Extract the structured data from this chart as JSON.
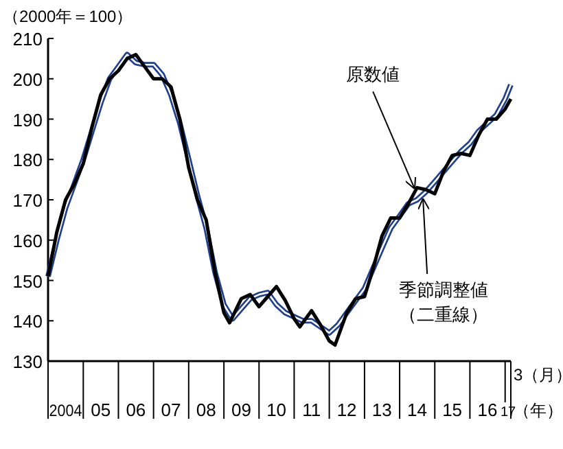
{
  "chart_data": {
    "type": "line",
    "ylabel": "（2000年＝100）",
    "xlim": [
      "2004-01",
      "2017-03"
    ],
    "ylim": [
      130,
      210
    ],
    "yticks": [
      130,
      140,
      150,
      160,
      170,
      180,
      190,
      200,
      210
    ],
    "xticks": [
      {
        "value": "2004-01",
        "label": null
      },
      {
        "value": "2004-07",
        "label": "2004"
      },
      {
        "value": "2005-01",
        "label": null
      },
      {
        "value": "2005-07",
        "label": "05"
      },
      {
        "value": "2006-01",
        "label": null
      },
      {
        "value": "2006-07",
        "label": "06"
      },
      {
        "value": "2007-01",
        "label": null
      },
      {
        "value": "2007-07",
        "label": "07"
      },
      {
        "value": "2008-01",
        "label": null
      },
      {
        "value": "2008-07",
        "label": "08"
      },
      {
        "value": "2009-01",
        "label": null
      },
      {
        "value": "2009-07",
        "label": "09"
      },
      {
        "value": "2010-01",
        "label": null
      },
      {
        "value": "2010-07",
        "label": "10"
      },
      {
        "value": "2011-01",
        "label": null
      },
      {
        "value": "2011-07",
        "label": "11"
      },
      {
        "value": "2012-01",
        "label": null
      },
      {
        "value": "2012-07",
        "label": "12"
      },
      {
        "value": "2013-01",
        "label": null
      },
      {
        "value": "2013-07",
        "label": "13"
      },
      {
        "value": "2014-01",
        "label": null
      },
      {
        "value": "2014-07",
        "label": "14"
      },
      {
        "value": "2015-01",
        "label": null
      },
      {
        "value": "2015-07",
        "label": "15"
      },
      {
        "value": "2016-01",
        "label": null
      },
      {
        "value": "2016-07",
        "label": "16"
      },
      {
        "value": "2017-01",
        "label": null
      },
      {
        "value": "2017-02",
        "label": "17"
      },
      {
        "value": "2017-03",
        "label": null
      }
    ],
    "grid": false,
    "series": [
      {
        "color": "#1f3f8f",
        "x": [
          "2004-01",
          "2004-04",
          "2004-07",
          "2004-10",
          "2005-01",
          "2005-04",
          "2005-07",
          "2005-10",
          "2006-01",
          "2006-04",
          "2006-07",
          "2006-10",
          "2007-01",
          "2007-04",
          "2007-07",
          "2007-10",
          "2008-01",
          "2008-04",
          "2008-07",
          "2008-10",
          "2009-01",
          "2009-04",
          "2009-07",
          "2009-10",
          "2010-01",
          "2010-04",
          "2010-07",
          "2010-10",
          "2011-01",
          "2011-04",
          "2011-07",
          "2011-10",
          "2012-01",
          "2012-04",
          "2012-07",
          "2012-10",
          "2013-01",
          "2013-04",
          "2013-07",
          "2013-10",
          "2014-01",
          "2014-04",
          "2014-07",
          "2014-10",
          "2015-01",
          "2015-04",
          "2015-07",
          "2015-10",
          "2016-01",
          "2016-04",
          "2016-07",
          "2016-10",
          "2017-01",
          "2017-03"
        ],
        "values": [
          151,
          160,
          168,
          174,
          180,
          187,
          194,
          200,
          203,
          206,
          204,
          203.5,
          203.5,
          201,
          196,
          189,
          180,
          171,
          163,
          152,
          144,
          140.5,
          143,
          145.5,
          146.5,
          147,
          144,
          142,
          141,
          140,
          140,
          138.5,
          137,
          139,
          142,
          145,
          148,
          153,
          158,
          163,
          166,
          169,
          170,
          172,
          174.5,
          177,
          179.5,
          182,
          184,
          187,
          189,
          191,
          195,
          198.5
        ]
      },
      {
        "color": "#000000",
        "x": [
          "2004-01",
          "2004-04",
          "2004-07",
          "2004-10",
          "2005-01",
          "2005-04",
          "2005-07",
          "2005-10",
          "2006-01",
          "2006-04",
          "2006-07",
          "2006-10",
          "2007-01",
          "2007-04",
          "2007-07",
          "2007-10",
          "2008-01",
          "2008-04",
          "2008-07",
          "2008-10",
          "2009-01",
          "2009-03",
          "2009-07",
          "2009-10",
          "2010-01",
          "2010-04",
          "2010-07",
          "2010-10",
          "2011-01",
          "2011-03",
          "2011-07",
          "2011-10",
          "2012-01",
          "2012-03",
          "2012-07",
          "2012-10",
          "2013-01",
          "2013-04",
          "2013-07",
          "2013-10",
          "2014-01",
          "2014-04",
          "2014-07",
          "2014-10",
          "2015-01",
          "2015-04",
          "2015-07",
          "2015-10",
          "2016-01",
          "2016-04",
          "2016-07",
          "2016-10",
          "2017-01",
          "2017-03"
        ],
        "values": [
          151,
          162,
          170,
          174,
          179,
          188,
          196,
          200,
          202,
          205,
          206,
          203,
          200,
          200,
          198,
          190,
          178,
          170,
          165,
          152,
          142,
          139.5,
          145.5,
          146.5,
          143.5,
          146,
          148.5,
          145,
          140.5,
          138.5,
          142.5,
          139,
          135,
          134,
          142,
          145.5,
          146,
          153,
          161,
          165.5,
          165.5,
          169,
          173,
          172.5,
          171.5,
          177,
          181,
          181.5,
          181,
          186,
          190,
          190,
          192.5,
          195
        ]
      }
    ],
    "annotations": [
      {
        "text": "原数値",
        "x": "2014-06",
        "y": 173
      },
      {
        "text": "季節調整値（二重線）",
        "x": "2014-09",
        "y": 170
      },
      "3（月）",
      "（年）"
    ]
  }
}
